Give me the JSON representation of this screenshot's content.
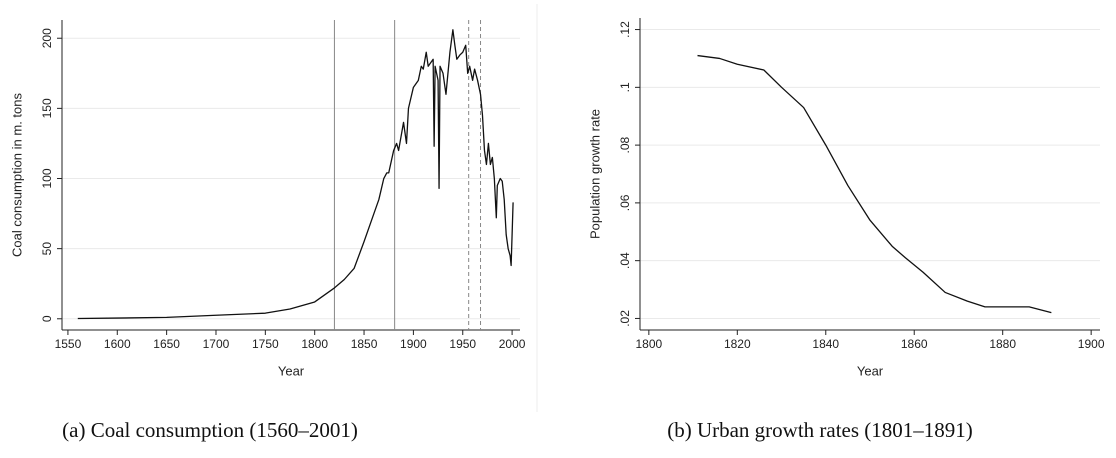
{
  "chart_data": [
    {
      "type": "line",
      "xlabel": "Year",
      "ylabel": "Coal consumption in m. tons",
      "caption": "(a) Coal consumption (1560–2001)",
      "x": [
        1560,
        1600,
        1650,
        1700,
        1750,
        1775,
        1800,
        1810,
        1820,
        1830,
        1840,
        1850,
        1860,
        1865,
        1870,
        1873,
        1875,
        1880,
        1883,
        1885,
        1890,
        1893,
        1895,
        1900,
        1905,
        1908,
        1910,
        1913,
        1915,
        1920,
        1921,
        1922,
        1925,
        1926,
        1927,
        1930,
        1933,
        1937,
        1940,
        1942,
        1944,
        1947,
        1950,
        1953,
        1955,
        1957,
        1960,
        1962,
        1965,
        1968,
        1970,
        1972,
        1974,
        1976,
        1978,
        1980,
        1982,
        1984,
        1985,
        1988,
        1990,
        1992,
        1994,
        1996,
        1998,
        1999,
        2000,
        2001
      ],
      "values": [
        0.2,
        0.5,
        1,
        2.5,
        4,
        7,
        12,
        17,
        22,
        28,
        36,
        55,
        75,
        85,
        100,
        104,
        104,
        120,
        125,
        120,
        140,
        125,
        150,
        165,
        170,
        180,
        178,
        190,
        180,
        185,
        123,
        180,
        170,
        93,
        180,
        175,
        160,
        190,
        206,
        195,
        185,
        188,
        190,
        195,
        175,
        180,
        170,
        178,
        170,
        160,
        145,
        120,
        110,
        125,
        110,
        115,
        100,
        72,
        95,
        100,
        98,
        85,
        60,
        50,
        45,
        38,
        60,
        83
      ],
      "color": "#111111",
      "xlim": [
        1544,
        2008
      ],
      "ylim": [
        -8,
        213
      ],
      "xticks": [
        1550,
        1600,
        1650,
        1700,
        1750,
        1800,
        1850,
        1900,
        1950,
        2000
      ],
      "yticks": [
        0,
        50,
        100,
        150,
        200
      ],
      "grid": true,
      "vlines": [
        {
          "value": 1820,
          "style": "solid"
        },
        {
          "value": 1881,
          "style": "solid"
        },
        {
          "value": 1956,
          "style": "dashed"
        },
        {
          "value": 1968,
          "style": "dashed"
        }
      ]
    },
    {
      "type": "line",
      "xlabel": "Year",
      "ylabel": "Population growth rate",
      "caption": "(b) Urban growth rates (1801–1891)",
      "x": [
        1811,
        1816,
        1820,
        1826,
        1830,
        1835,
        1840,
        1845,
        1850,
        1855,
        1858,
        1862,
        1867,
        1872,
        1876,
        1880,
        1886,
        1891
      ],
      "values": [
        0.111,
        0.11,
        0.108,
        0.106,
        0.1,
        0.093,
        0.08,
        0.066,
        0.054,
        0.045,
        0.041,
        0.036,
        0.029,
        0.026,
        0.024,
        0.024,
        0.024,
        0.022
      ],
      "color": "#111111",
      "xlim": [
        1798,
        1902
      ],
      "ylim": [
        0.016,
        0.124
      ],
      "xticks": [
        1800,
        1820,
        1840,
        1860,
        1880,
        1900
      ],
      "yticks": [
        {
          "value": 0.02,
          "label": ".02"
        },
        {
          "value": 0.04,
          "label": ".04"
        },
        {
          "value": 0.06,
          "label": ".06"
        },
        {
          "value": 0.08,
          "label": ".08"
        },
        {
          "value": 0.1,
          "label": ".1"
        },
        {
          "value": 0.12,
          "label": ".12"
        }
      ],
      "grid": true
    }
  ]
}
